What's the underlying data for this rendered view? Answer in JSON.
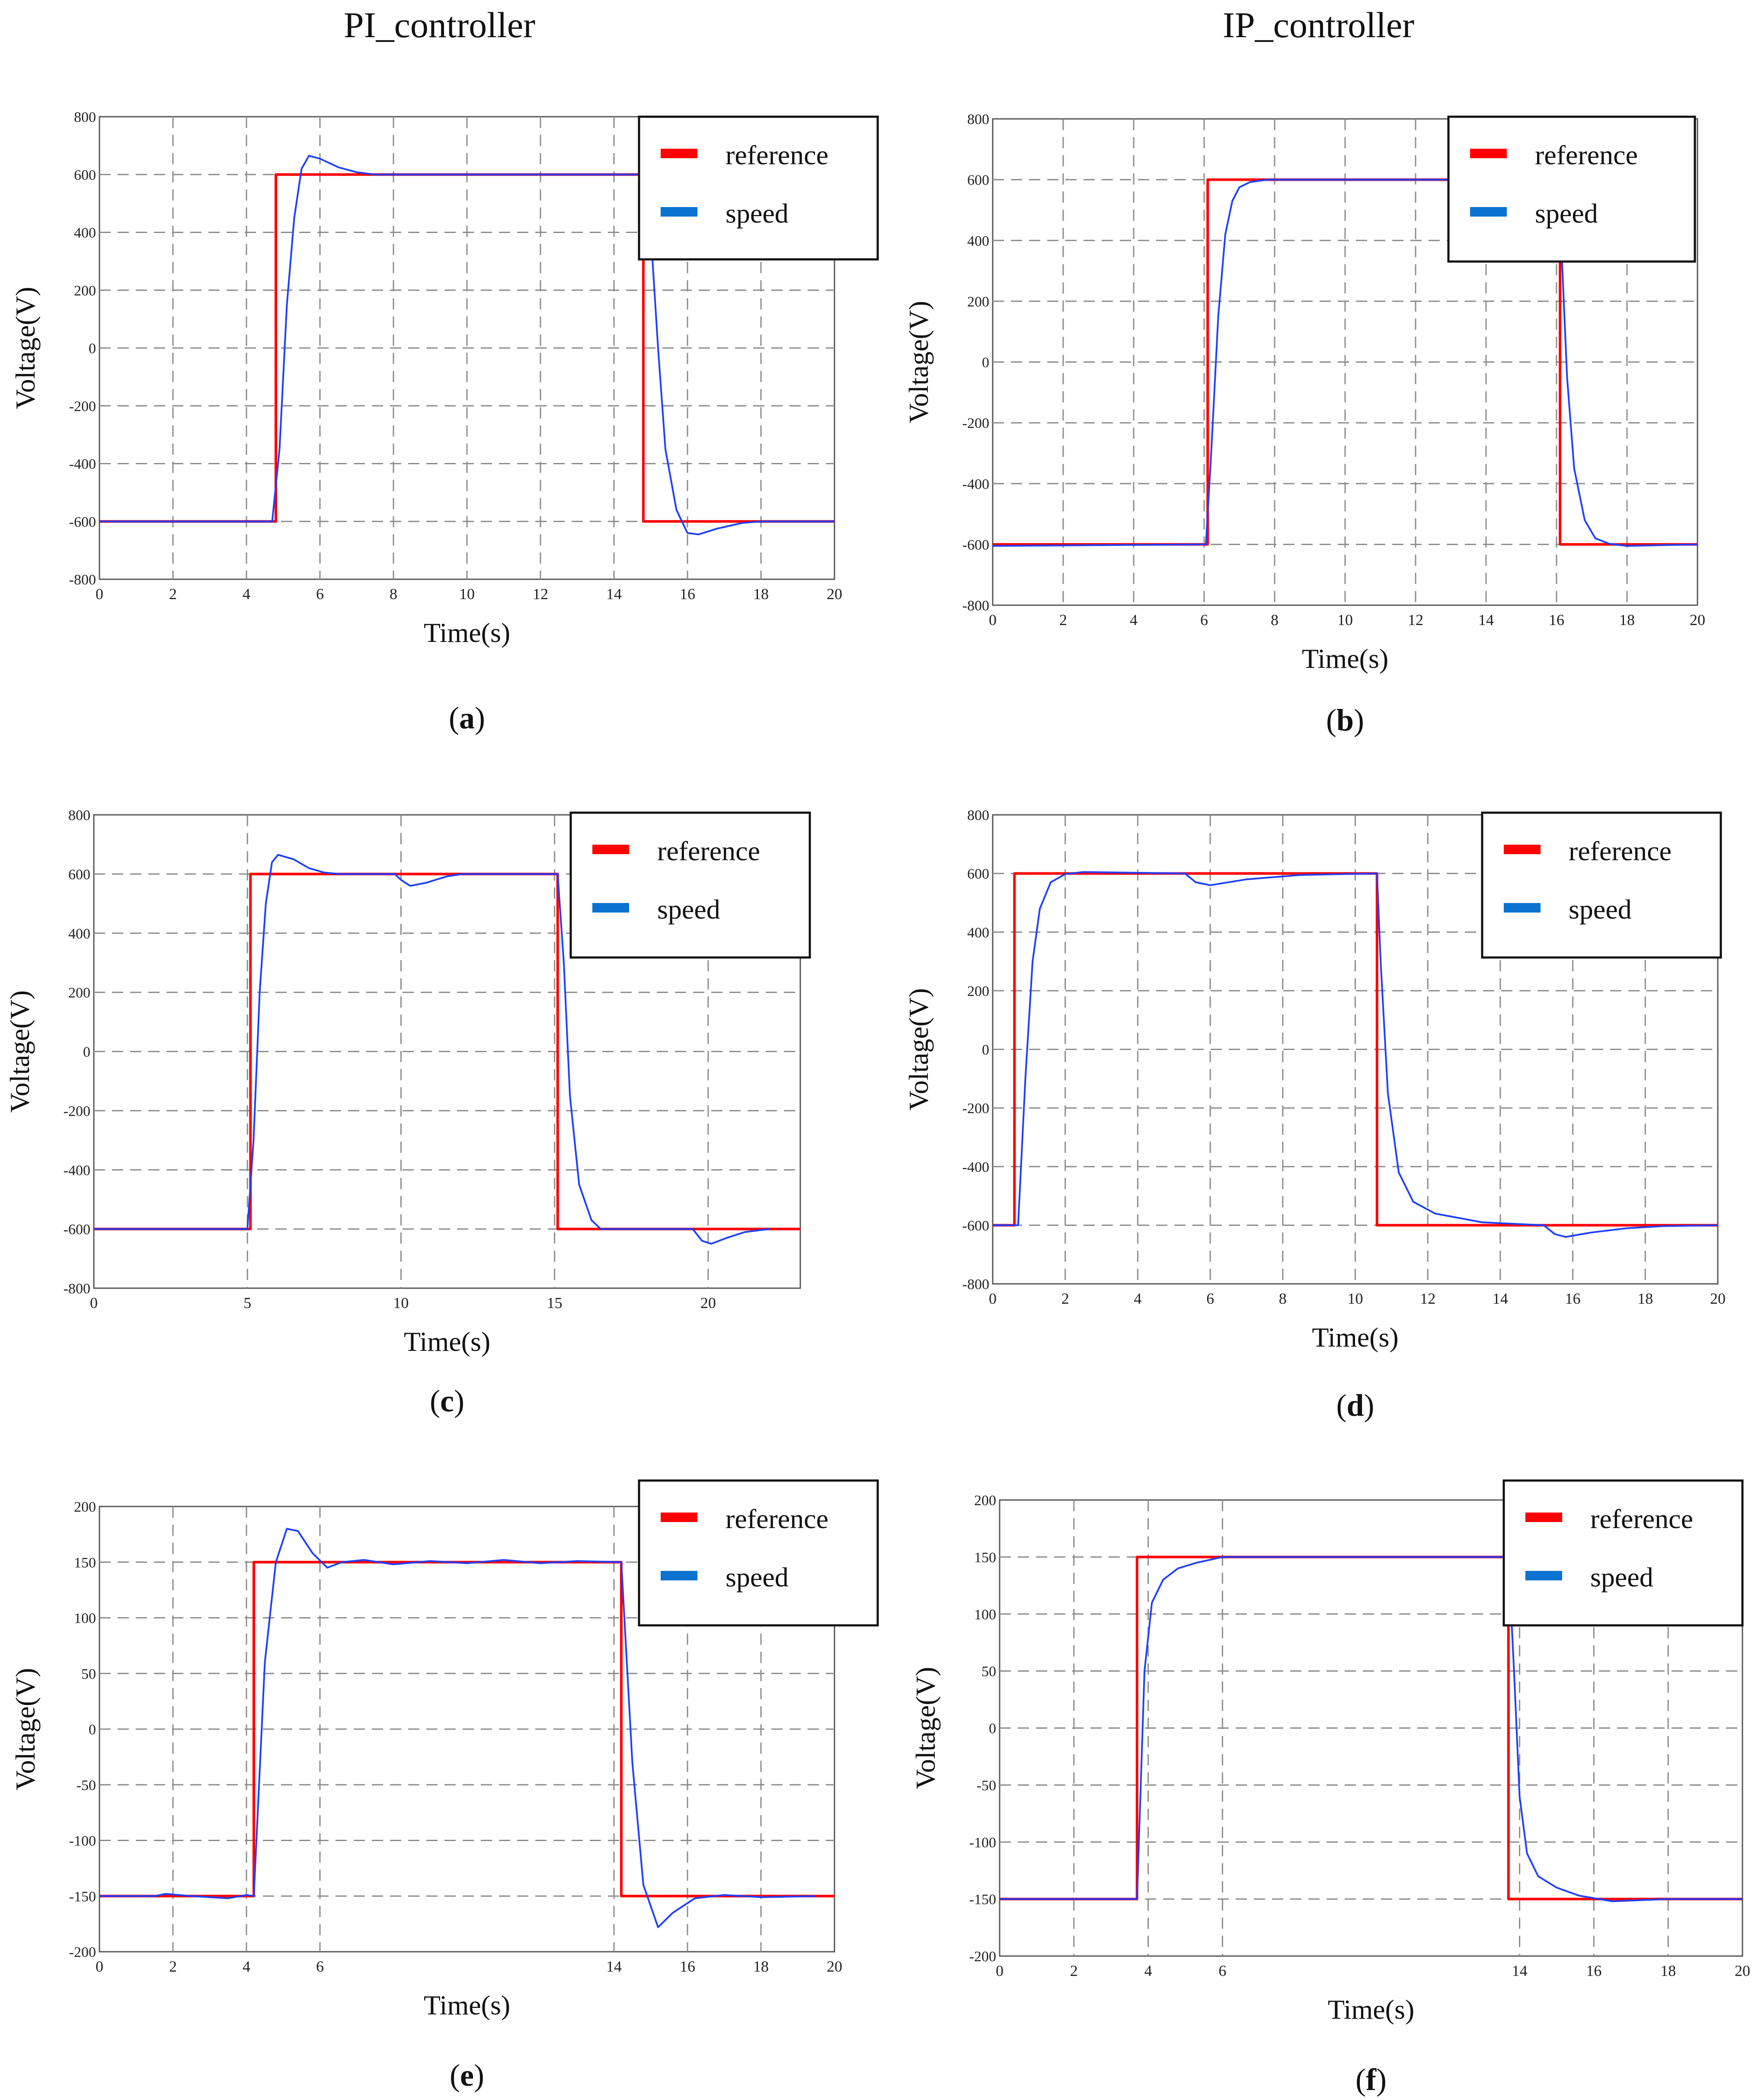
{
  "figure": {
    "left_title": "PI_controller",
    "right_title": "IP_controller"
  },
  "chart_data": [
    {
      "id": "a",
      "type": "line",
      "panel_label": "a",
      "xlabel": "Time(s)",
      "ylabel": "Voltage(V)",
      "xlim": [
        0,
        20
      ],
      "ylim": [
        -800,
        800
      ],
      "x_ticks": [
        0,
        2,
        4,
        6,
        8,
        10,
        12,
        14,
        16,
        18,
        20
      ],
      "x_tick_labels": [
        "0",
        "2",
        "4",
        "6",
        "8",
        "10",
        "12",
        "14",
        "16",
        "18",
        "20"
      ],
      "y_ticks": [
        800,
        600,
        400,
        200,
        0,
        -200,
        -400,
        -600,
        -800
      ],
      "y_tick_labels": [
        "800",
        "600",
        "400",
        "200",
        "0",
        "-200",
        "-400",
        "-600",
        "-800"
      ],
      "grid": true,
      "legend_position": "top-right",
      "series": [
        {
          "name": "reference",
          "color": "#ff0000",
          "points": [
            [
              0,
              -600
            ],
            [
              4.8,
              -600
            ],
            [
              4.8,
              600
            ],
            [
              14.8,
              600
            ],
            [
              14.8,
              -600
            ],
            [
              20,
              -600
            ]
          ]
        },
        {
          "name": "speed",
          "color": "#1f3fff",
          "points": [
            [
              0,
              -600
            ],
            [
              4.7,
              -600
            ],
            [
              4.9,
              -350
            ],
            [
              5.1,
              150
            ],
            [
              5.3,
              450
            ],
            [
              5.5,
              620
            ],
            [
              5.7,
              665
            ],
            [
              6,
              655
            ],
            [
              6.5,
              625
            ],
            [
              7,
              608
            ],
            [
              7.5,
              600
            ],
            [
              14.8,
              600
            ],
            [
              15,
              400
            ],
            [
              15.2,
              0
            ],
            [
              15.4,
              -350
            ],
            [
              15.7,
              -560
            ],
            [
              16,
              -640
            ],
            [
              16.3,
              -645
            ],
            [
              16.8,
              -625
            ],
            [
              17.5,
              -605
            ],
            [
              18,
              -600
            ],
            [
              20,
              -600
            ]
          ]
        }
      ]
    },
    {
      "id": "b",
      "type": "line",
      "panel_label": "b",
      "xlabel": "Time(s)",
      "ylabel": "Voltage(V)",
      "xlim": [
        0,
        20
      ],
      "ylim": [
        -800,
        800
      ],
      "x_ticks": [
        0,
        2,
        4,
        6,
        8,
        10,
        12,
        14,
        16,
        18,
        20
      ],
      "x_tick_labels": [
        "0",
        "2",
        "4",
        "6",
        "8",
        "10",
        "12",
        "14",
        "16",
        "18",
        "20"
      ],
      "y_ticks": [
        800,
        600,
        400,
        200,
        0,
        -200,
        -400,
        -600,
        -800
      ],
      "y_tick_labels": [
        "800",
        "600",
        "400",
        "200",
        "0",
        "-200",
        "-400",
        "-600",
        "-800"
      ],
      "grid": true,
      "legend_position": "top-right",
      "series": [
        {
          "name": "reference",
          "color": "#ff0000",
          "points": [
            [
              0,
              -600
            ],
            [
              6.1,
              -600
            ],
            [
              6.1,
              600
            ],
            [
              16.1,
              600
            ],
            [
              16.1,
              -600
            ],
            [
              20,
              -600
            ]
          ]
        },
        {
          "name": "speed",
          "color": "#1f3fff",
          "points": [
            [
              0,
              -605
            ],
            [
              6.05,
              -600
            ],
            [
              6.2,
              -300
            ],
            [
              6.4,
              150
            ],
            [
              6.6,
              420
            ],
            [
              6.8,
              530
            ],
            [
              7,
              575
            ],
            [
              7.3,
              592
            ],
            [
              7.8,
              600
            ],
            [
              16.05,
              600
            ],
            [
              16.15,
              350
            ],
            [
              16.3,
              -50
            ],
            [
              16.5,
              -350
            ],
            [
              16.8,
              -520
            ],
            [
              17.1,
              -580
            ],
            [
              17.5,
              -598
            ],
            [
              18,
              -605
            ],
            [
              20,
              -600
            ]
          ]
        }
      ]
    },
    {
      "id": "c",
      "type": "line",
      "panel_label": "c",
      "xlabel": "Time(s)",
      "ylabel": "Voltage(V)",
      "xlim": [
        0,
        23
      ],
      "ylim": [
        -800,
        800
      ],
      "x_ticks": [
        0,
        5,
        10,
        15,
        20
      ],
      "x_tick_labels": [
        "0",
        "5",
        "10",
        "15",
        "20"
      ],
      "y_ticks": [
        800,
        600,
        400,
        200,
        0,
        -200,
        -400,
        -600,
        -800
      ],
      "y_tick_labels": [
        "800",
        "600",
        "400",
        "200",
        "0",
        "-200",
        "-400",
        "-600",
        "-800"
      ],
      "grid": true,
      "legend_position": "top-right",
      "series": [
        {
          "name": "reference",
          "color": "#ff0000",
          "points": [
            [
              0,
              -600
            ],
            [
              5.1,
              -600
            ],
            [
              5.1,
              600
            ],
            [
              15.1,
              600
            ],
            [
              15.1,
              -600
            ],
            [
              23,
              -600
            ]
          ]
        },
        {
          "name": "speed",
          "color": "#1f3fff",
          "points": [
            [
              0,
              -600
            ],
            [
              5,
              -600
            ],
            [
              5.2,
              -300
            ],
            [
              5.4,
              200
            ],
            [
              5.6,
              500
            ],
            [
              5.8,
              640
            ],
            [
              6,
              665
            ],
            [
              6.5,
              650
            ],
            [
              7,
              620
            ],
            [
              7.5,
              605
            ],
            [
              8,
              600
            ],
            [
              9.8,
              600
            ],
            [
              10,
              580
            ],
            [
              10.3,
              560
            ],
            [
              10.8,
              570
            ],
            [
              11.5,
              592
            ],
            [
              12,
              600
            ],
            [
              15.1,
              600
            ],
            [
              15.3,
              300
            ],
            [
              15.5,
              -150
            ],
            [
              15.8,
              -450
            ],
            [
              16.2,
              -570
            ],
            [
              16.5,
              -600
            ],
            [
              19.5,
              -600
            ],
            [
              19.8,
              -640
            ],
            [
              20.1,
              -650
            ],
            [
              20.6,
              -630
            ],
            [
              21.2,
              -610
            ],
            [
              22,
              -600
            ]
          ]
        }
      ]
    },
    {
      "id": "d",
      "type": "line",
      "panel_label": "d",
      "xlabel": "Time(s)",
      "ylabel": "Voltage(V)",
      "xlim": [
        0,
        20
      ],
      "ylim": [
        -800,
        800
      ],
      "x_ticks": [
        0,
        2,
        4,
        6,
        8,
        10,
        12,
        14,
        16,
        18,
        20
      ],
      "x_tick_labels": [
        "0",
        "2",
        "4",
        "6",
        "8",
        "10",
        "12",
        "14",
        "16",
        "18",
        "20"
      ],
      "y_ticks": [
        800,
        600,
        400,
        200,
        0,
        -200,
        -400,
        -600,
        -800
      ],
      "y_tick_labels": [
        "800",
        "600",
        "400",
        "200",
        "0",
        "-200",
        "-400",
        "-600",
        "-800"
      ],
      "grid": true,
      "legend_position": "top-right",
      "series": [
        {
          "name": "reference",
          "color": "#ff0000",
          "points": [
            [
              0,
              -600
            ],
            [
              0.6,
              -600
            ],
            [
              0.6,
              600
            ],
            [
              10.6,
              600
            ],
            [
              10.6,
              -600
            ],
            [
              20,
              -600
            ]
          ]
        },
        {
          "name": "speed",
          "color": "#1f3fff",
          "points": [
            [
              0,
              -600
            ],
            [
              0.7,
              -600
            ],
            [
              0.9,
              -100
            ],
            [
              1.1,
              300
            ],
            [
              1.3,
              480
            ],
            [
              1.6,
              570
            ],
            [
              2,
              598
            ],
            [
              2.5,
              605
            ],
            [
              5.3,
              600
            ],
            [
              5.6,
              570
            ],
            [
              6,
              560
            ],
            [
              7,
              580
            ],
            [
              8.5,
              595
            ],
            [
              10.6,
              600
            ],
            [
              10.7,
              300
            ],
            [
              10.9,
              -150
            ],
            [
              11.2,
              -420
            ],
            [
              11.6,
              -520
            ],
            [
              12.2,
              -560
            ],
            [
              13.5,
              -590
            ],
            [
              15.2,
              -600
            ],
            [
              15.5,
              -630
            ],
            [
              15.8,
              -640
            ],
            [
              16.5,
              -625
            ],
            [
              17.5,
              -610
            ],
            [
              18.5,
              -603
            ],
            [
              20,
              -600
            ]
          ]
        }
      ]
    },
    {
      "id": "e",
      "type": "line",
      "panel_label": "e",
      "xlabel": "Time(s)",
      "ylabel": "Voltage(V)",
      "xlim": [
        0,
        20
      ],
      "ylim": [
        -200,
        200
      ],
      "x_ticks": [
        0,
        2,
        4,
        6,
        14,
        16,
        18,
        20
      ],
      "x_tick_labels": [
        "0",
        "2",
        "4",
        "6",
        "14",
        "16",
        "18",
        "20"
      ],
      "y_ticks": [
        200,
        150,
        100,
        50,
        0,
        -50,
        -100,
        -150,
        -200
      ],
      "y_tick_labels": [
        "200",
        "150",
        "100",
        "50",
        "0",
        "-50",
        "-100",
        "-150",
        "-200"
      ],
      "grid": true,
      "legend_position": "top-right",
      "series": [
        {
          "name": "reference",
          "color": "#ff0000",
          "points": [
            [
              0,
              -150
            ],
            [
              4.2,
              -150
            ],
            [
              4.2,
              150
            ],
            [
              14.2,
              150
            ],
            [
              14.2,
              -150
            ],
            [
              20,
              -150
            ]
          ]
        },
        {
          "name": "speed",
          "color": "#1f3fff",
          "points": [
            [
              0,
              -150
            ],
            [
              1.5,
              -150
            ],
            [
              1.8,
              -148
            ],
            [
              2.5,
              -150
            ],
            [
              3.5,
              -152
            ],
            [
              4,
              -149
            ],
            [
              4.2,
              -150
            ],
            [
              4.5,
              60
            ],
            [
              4.8,
              150
            ],
            [
              5.1,
              180
            ],
            [
              5.4,
              178
            ],
            [
              5.8,
              158
            ],
            [
              6.2,
              145
            ],
            [
              6.6,
              150
            ],
            [
              7.2,
              152
            ],
            [
              8,
              148
            ],
            [
              9,
              151
            ],
            [
              10,
              149
            ],
            [
              11,
              152
            ],
            [
              12,
              149
            ],
            [
              13,
              151
            ],
            [
              14.2,
              150
            ],
            [
              14.5,
              -30
            ],
            [
              14.8,
              -140
            ],
            [
              15.2,
              -178
            ],
            [
              15.6,
              -165
            ],
            [
              16.2,
              -152
            ],
            [
              17,
              -149
            ],
            [
              18,
              -151
            ],
            [
              19.5,
              -150
            ]
          ]
        }
      ]
    },
    {
      "id": "f",
      "type": "line",
      "panel_label": "f",
      "xlabel": "Time(s)",
      "ylabel": "Voltage(V)",
      "xlim": [
        0,
        20
      ],
      "ylim": [
        -200,
        200
      ],
      "x_ticks": [
        0,
        2,
        4,
        6,
        14,
        16,
        18,
        20
      ],
      "x_tick_labels": [
        "0",
        "2",
        "4",
        "6",
        "14",
        "16",
        "18",
        "20"
      ],
      "y_ticks": [
        200,
        150,
        100,
        50,
        0,
        -50,
        -100,
        -150,
        -200
      ],
      "y_tick_labels": [
        "200",
        "150",
        "100",
        "50",
        "0",
        "-50",
        "-100",
        "-150",
        "-200"
      ],
      "grid": true,
      "legend_position": "top-right",
      "series": [
        {
          "name": "reference",
          "color": "#ff0000",
          "points": [
            [
              0,
              -150
            ],
            [
              3.7,
              -150
            ],
            [
              3.7,
              150
            ],
            [
              13.7,
              150
            ],
            [
              13.7,
              -150
            ],
            [
              20,
              -150
            ]
          ]
        },
        {
          "name": "speed",
          "color": "#1f3fff",
          "points": [
            [
              0,
              -150
            ],
            [
              3.7,
              -150
            ],
            [
              3.9,
              50
            ],
            [
              4.1,
              110
            ],
            [
              4.4,
              130
            ],
            [
              4.8,
              140
            ],
            [
              5.3,
              145
            ],
            [
              6,
              150
            ],
            [
              8,
              150
            ],
            [
              10,
              150
            ],
            [
              12,
              150
            ],
            [
              13.7,
              150
            ],
            [
              13.85,
              50
            ],
            [
              14,
              -60
            ],
            [
              14.2,
              -110
            ],
            [
              14.5,
              -130
            ],
            [
              15,
              -140
            ],
            [
              15.6,
              -147
            ],
            [
              16.5,
              -152
            ],
            [
              18,
              -150
            ],
            [
              20,
              -150
            ]
          ]
        }
      ]
    }
  ]
}
